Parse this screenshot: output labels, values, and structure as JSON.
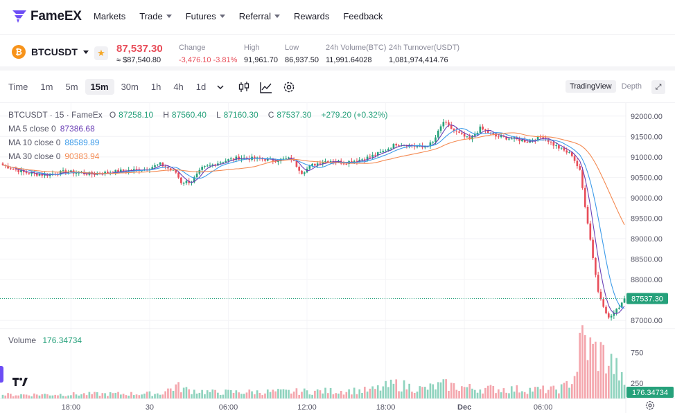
{
  "brand": {
    "name": "FameEX"
  },
  "nav": {
    "items": [
      {
        "label": "Markets",
        "dropdown": false
      },
      {
        "label": "Trade",
        "dropdown": true
      },
      {
        "label": "Futures",
        "dropdown": true
      },
      {
        "label": "Referral",
        "dropdown": true
      },
      {
        "label": "Rewards",
        "dropdown": false
      },
      {
        "label": "Feedback",
        "dropdown": false
      }
    ]
  },
  "ticker": {
    "pair": "BTCUSDT",
    "coin_symbol": "₿",
    "last_price": "87,537.30",
    "last_fiat": "≈ $87,540.80",
    "change_label": "Change",
    "change_value": "-3,476.10 -3.81%",
    "high_label": "High",
    "high_value": "91,961.70",
    "low_label": "Low",
    "low_value": "86,937.50",
    "vol_label": "24h Volume(BTC)",
    "vol_value": "11,991.64028",
    "turnover_label": "24h Turnover(USDT)",
    "turnover_value": "1,081,974,414.76"
  },
  "toolbar": {
    "time_label": "Time",
    "intervals": [
      "1m",
      "5m",
      "15m",
      "30m",
      "1h",
      "4h",
      "1d"
    ],
    "active_interval": "15m",
    "views": [
      "TradingView",
      "Depth"
    ],
    "active_view": "TradingView"
  },
  "legend": {
    "title": "BTCUSDT · 15 · FameEx",
    "o_label": "O",
    "o": "87258.10",
    "h_label": "H",
    "h": "87560.40",
    "l_label": "L",
    "l": "87160.30",
    "c_label": "C",
    "c": "87537.30",
    "chg": "+279.20 (+0.32%)",
    "ma5_label": "MA 5 close 0",
    "ma5": "87386.68",
    "ma10_label": "MA 10 close 0",
    "ma10": "88589.89",
    "ma30_label": "MA 30 close 0",
    "ma30": "90383.94",
    "volume_label": "Volume",
    "volume": "176.34734"
  },
  "colors": {
    "up": "#26a17b",
    "down": "#e84d59",
    "ma5": "#6a3fb5",
    "ma10": "#3d9be9",
    "ma30": "#f48a52",
    "brand": "#6c4cf5"
  },
  "chart_data": {
    "type": "candlestick",
    "price_axis": {
      "ticks": [
        92000,
        91500,
        91000,
        90500,
        90000,
        89500,
        89000,
        88500,
        88000,
        87000
      ],
      "min": 86800,
      "max": 92250
    },
    "time_axis": {
      "labels": [
        "18:00",
        "30",
        "06:00",
        "12:00",
        "18:00",
        "Dec",
        "06:00"
      ]
    },
    "volume_axis": {
      "ticks": [
        750,
        250
      ]
    },
    "current_price": 87537.3,
    "current_price_label": "87537.30",
    "current_volume_label": "176.34734",
    "profile": [
      [
        0,
        90800
      ],
      [
        8,
        90620
      ],
      [
        16,
        90560
      ],
      [
        24,
        90640
      ],
      [
        34,
        90580
      ],
      [
        44,
        90650
      ],
      [
        54,
        90700
      ],
      [
        60,
        90820
      ],
      [
        66,
        90620
      ],
      [
        68,
        90380
      ],
      [
        72,
        90400
      ],
      [
        76,
        90720
      ],
      [
        84,
        90900
      ],
      [
        90,
        90980
      ],
      [
        98,
        90950
      ],
      [
        104,
        90920
      ],
      [
        110,
        90960
      ],
      [
        114,
        90620
      ],
      [
        118,
        90800
      ],
      [
        124,
        90920
      ],
      [
        130,
        90860
      ],
      [
        138,
        90960
      ],
      [
        144,
        91100
      ],
      [
        150,
        91320
      ],
      [
        154,
        91300
      ],
      [
        160,
        91230
      ],
      [
        164,
        91350
      ],
      [
        168,
        91860
      ],
      [
        172,
        91640
      ],
      [
        178,
        91420
      ],
      [
        182,
        91700
      ],
      [
        188,
        91500
      ],
      [
        194,
        91450
      ],
      [
        200,
        91380
      ],
      [
        206,
        91500
      ],
      [
        210,
        91300
      ],
      [
        214,
        91150
      ],
      [
        217,
        91050
      ],
      [
        220,
        90650
      ],
      [
        223,
        89400
      ],
      [
        227,
        87700
      ],
      [
        231,
        87050
      ],
      [
        234,
        87250
      ],
      [
        237,
        87540
      ]
    ],
    "volume_profile": [
      [
        0,
        60
      ],
      [
        60,
        80
      ],
      [
        66,
        200
      ],
      [
        70,
        140
      ],
      [
        80,
        100
      ],
      [
        110,
        110
      ],
      [
        140,
        130
      ],
      [
        150,
        230
      ],
      [
        160,
        150
      ],
      [
        168,
        220
      ],
      [
        180,
        160
      ],
      [
        210,
        140
      ],
      [
        214,
        180
      ],
      [
        218,
        360
      ],
      [
        221,
        980
      ],
      [
        224,
        780
      ],
      [
        228,
        720
      ],
      [
        232,
        560
      ],
      [
        235,
        420
      ],
      [
        237,
        176
      ]
    ]
  }
}
